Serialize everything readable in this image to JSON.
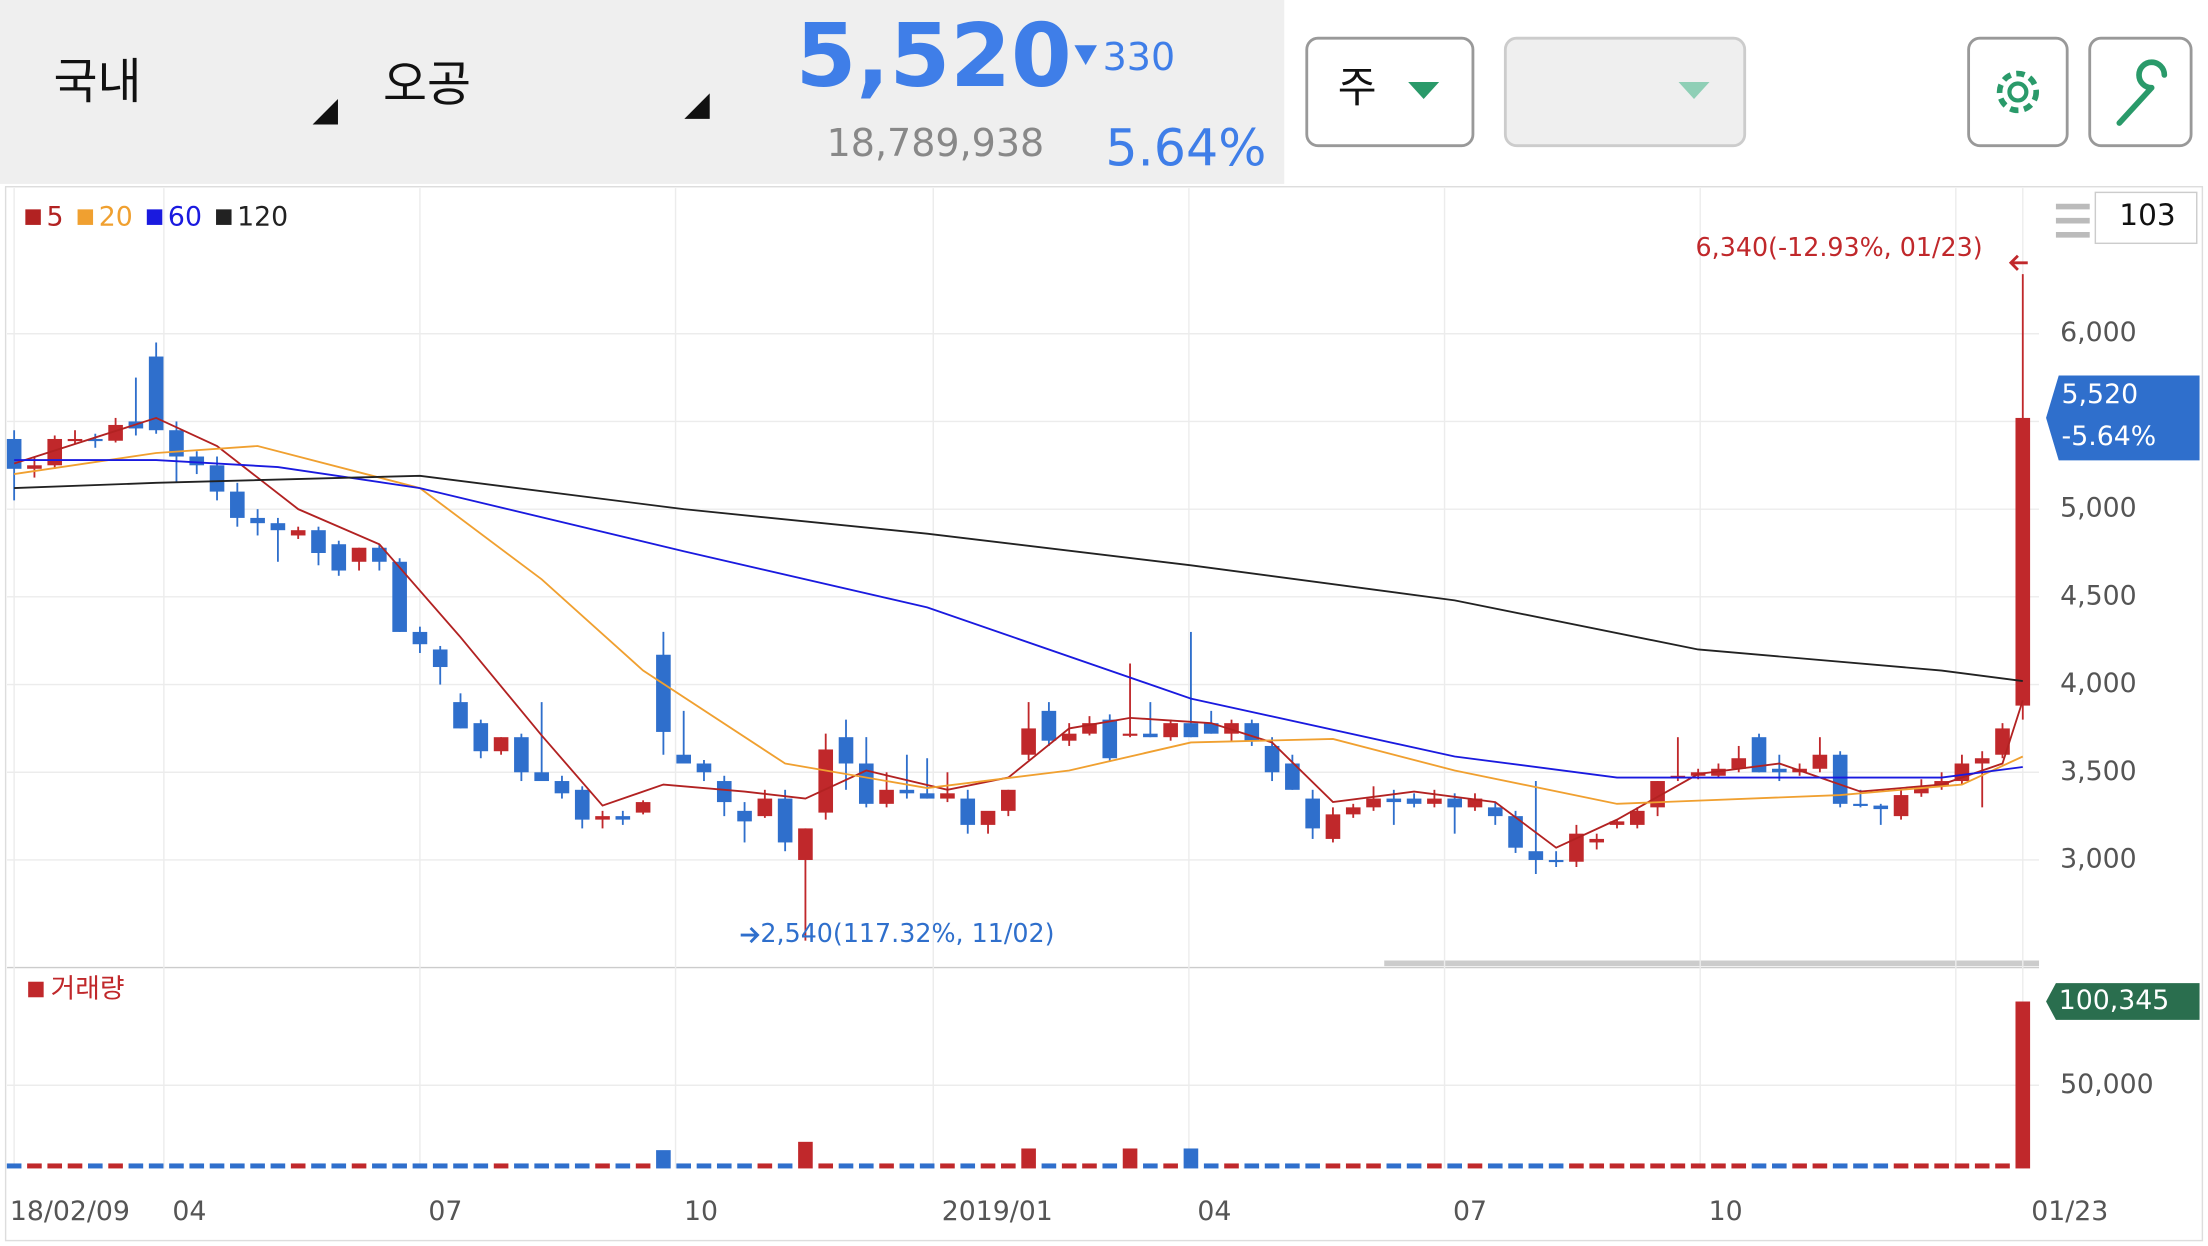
{
  "header": {
    "market": "국내",
    "name": "오공",
    "price": "5,520",
    "change": "330",
    "volume": "18,789,938",
    "rate": "5.64%",
    "period": "주"
  },
  "chart_data": {
    "type": "candlestick",
    "legend_period": "103",
    "ylim": [
      2435,
      6830
    ],
    "yticks": [
      {
        "value": 3000,
        "label": "3,000"
      },
      {
        "value": 3500,
        "label": "3,500"
      },
      {
        "value": 4000,
        "label": "4,000"
      },
      {
        "value": 4500,
        "label": "4,500"
      },
      {
        "value": 5000,
        "label": "5,000"
      },
      {
        "value": 5500,
        "label": "5,500"
      },
      {
        "value": 6000,
        "label": "6,000"
      }
    ],
    "xlim": [
      -0.35,
      99.8
    ],
    "xticks": [
      {
        "value": 0,
        "label": "18/02/09"
      },
      {
        "value": 7.38,
        "label": "04"
      },
      {
        "value": 20,
        "label": "07"
      },
      {
        "value": 32.6,
        "label": "10"
      },
      {
        "value": 45.3,
        "label": "2019/01"
      },
      {
        "value": 57.9,
        "label": "04"
      },
      {
        "value": 70.5,
        "label": "07"
      },
      {
        "value": 83.1,
        "label": "10"
      },
      {
        "value": 95.7,
        "label": ""
      },
      {
        "value": 99,
        "label": "01/23"
      }
    ],
    "up_color": "#c0282b",
    "down_color": "#2f6fcc",
    "ohlc": [
      [
        5400,
        5450,
        5050,
        5230
      ],
      [
        5230,
        5300,
        5180,
        5250
      ],
      [
        5250,
        5420,
        5230,
        5400
      ],
      [
        5400,
        5450,
        5370,
        5400
      ],
      [
        5400,
        5430,
        5350,
        5390
      ],
      [
        5390,
        5520,
        5380,
        5480
      ],
      [
        5500,
        5750,
        5420,
        5460
      ],
      [
        5870,
        5950,
        5430,
        5450
      ],
      [
        5450,
        5500,
        5150,
        5300
      ],
      [
        5300,
        5330,
        5200,
        5250
      ],
      [
        5250,
        5300,
        5050,
        5100
      ],
      [
        5100,
        5150,
        4900,
        4950
      ],
      [
        4950,
        5000,
        4850,
        4920
      ],
      [
        4920,
        4950,
        4700,
        4880
      ],
      [
        4850,
        4900,
        4830,
        4880
      ],
      [
        4880,
        4900,
        4680,
        4750
      ],
      [
        4800,
        4820,
        4620,
        4650
      ],
      [
        4700,
        4780,
        4650,
        4780
      ],
      [
        4780,
        4800,
        4650,
        4700
      ],
      [
        4700,
        4720,
        4300,
        4300
      ],
      [
        4300,
        4330,
        4180,
        4230
      ],
      [
        4200,
        4220,
        4000,
        4100
      ],
      [
        3900,
        3950,
        3750,
        3750
      ],
      [
        3780,
        3800,
        3580,
        3620
      ],
      [
        3620,
        3700,
        3600,
        3700
      ],
      [
        3700,
        3720,
        3450,
        3500
      ],
      [
        3500,
        3900,
        3450,
        3450
      ],
      [
        3450,
        3480,
        3350,
        3380
      ],
      [
        3400,
        3420,
        3180,
        3230
      ],
      [
        3230,
        3280,
        3180,
        3250
      ],
      [
        3250,
        3280,
        3200,
        3230
      ],
      [
        3270,
        3340,
        3260,
        3330
      ],
      [
        4170,
        4300,
        3600,
        3730
      ],
      [
        3600,
        3850,
        3550,
        3550
      ],
      [
        3550,
        3570,
        3450,
        3500
      ],
      [
        3450,
        3480,
        3250,
        3330
      ],
      [
        3280,
        3330,
        3100,
        3220
      ],
      [
        3250,
        3400,
        3240,
        3350
      ],
      [
        3350,
        3400,
        3050,
        3100
      ],
      [
        3000,
        3180,
        2540,
        3180
      ],
      [
        3270,
        3720,
        3230,
        3630
      ],
      [
        3700,
        3800,
        3400,
        3550
      ],
      [
        3550,
        3700,
        3300,
        3320
      ],
      [
        3320,
        3500,
        3300,
        3400
      ],
      [
        3400,
        3600,
        3350,
        3380
      ],
      [
        3380,
        3580,
        3350,
        3350
      ],
      [
        3350,
        3500,
        3330,
        3380
      ],
      [
        3350,
        3400,
        3150,
        3200
      ],
      [
        3200,
        3250,
        3150,
        3280
      ],
      [
        3280,
        3400,
        3250,
        3400
      ],
      [
        3600,
        3900,
        3570,
        3750
      ],
      [
        3850,
        3900,
        3650,
        3680
      ],
      [
        3680,
        3780,
        3650,
        3720
      ],
      [
        3720,
        3820,
        3710,
        3780
      ],
      [
        3800,
        3830,
        3560,
        3580
      ],
      [
        3720,
        4120,
        3700,
        3720
      ],
      [
        3720,
        3900,
        3700,
        3700
      ],
      [
        3700,
        3800,
        3680,
        3780
      ],
      [
        3780,
        4300,
        3700,
        3700
      ],
      [
        3780,
        3850,
        3720,
        3720
      ],
      [
        3720,
        3800,
        3680,
        3780
      ],
      [
        3780,
        3800,
        3650,
        3680
      ],
      [
        3650,
        3700,
        3450,
        3500
      ],
      [
        3550,
        3600,
        3400,
        3400
      ],
      [
        3350,
        3400,
        3120,
        3180
      ],
      [
        3120,
        3300,
        3100,
        3260
      ],
      [
        3260,
        3320,
        3240,
        3300
      ],
      [
        3300,
        3420,
        3280,
        3350
      ],
      [
        3350,
        3400,
        3200,
        3330
      ],
      [
        3350,
        3380,
        3300,
        3320
      ],
      [
        3320,
        3400,
        3300,
        3350
      ],
      [
        3350,
        3380,
        3150,
        3300
      ],
      [
        3300,
        3380,
        3280,
        3350
      ],
      [
        3300,
        3330,
        3200,
        3250
      ],
      [
        3250,
        3280,
        3040,
        3070
      ],
      [
        3050,
        3450,
        2920,
        3000
      ],
      [
        3000,
        3050,
        2960,
        2990
      ],
      [
        2990,
        3200,
        2960,
        3150
      ],
      [
        3100,
        3150,
        3060,
        3120
      ],
      [
        3200,
        3230,
        3180,
        3220
      ],
      [
        3200,
        3300,
        3180,
        3280
      ],
      [
        3300,
        3450,
        3250,
        3450
      ],
      [
        3480,
        3700,
        3450,
        3480
      ],
      [
        3480,
        3520,
        3460,
        3500
      ],
      [
        3480,
        3550,
        3470,
        3520
      ],
      [
        3520,
        3650,
        3500,
        3580
      ],
      [
        3700,
        3720,
        3500,
        3500
      ],
      [
        3520,
        3600,
        3450,
        3500
      ],
      [
        3500,
        3550,
        3480,
        3520
      ],
      [
        3520,
        3700,
        3500,
        3600
      ],
      [
        3600,
        3620,
        3300,
        3320
      ],
      [
        3320,
        3400,
        3300,
        3310
      ],
      [
        3310,
        3320,
        3200,
        3290
      ],
      [
        3250,
        3400,
        3230,
        3370
      ],
      [
        3380,
        3460,
        3360,
        3420
      ],
      [
        3420,
        3500,
        3400,
        3450
      ],
      [
        3450,
        3600,
        3430,
        3550
      ],
      [
        3550,
        3620,
        3300,
        3580
      ],
      [
        3600,
        3780,
        3580,
        3750
      ],
      [
        3880,
        6340,
        3800,
        5520
      ]
    ],
    "ma": [
      {
        "name": "5",
        "color": "#b22222",
        "x": [
          0,
          7,
          10,
          14,
          18,
          22,
          26,
          29,
          32,
          36,
          39,
          42,
          46,
          49,
          52,
          55,
          59,
          62,
          65,
          69,
          73,
          76,
          79,
          83,
          87,
          91,
          95,
          98,
          99
        ],
        "values": [
          5260,
          5520,
          5360,
          5000,
          4800,
          4270,
          3710,
          3310,
          3430,
          3390,
          3350,
          3510,
          3400,
          3470,
          3750,
          3810,
          3780,
          3670,
          3330,
          3390,
          3330,
          3070,
          3230,
          3490,
          3550,
          3390,
          3430,
          3550,
          3910
        ]
      },
      {
        "name": "20",
        "color": "#f0a030",
        "x": [
          0,
          7,
          12,
          20,
          26,
          31,
          38,
          45,
          52,
          58,
          65,
          71,
          79,
          90,
          96,
          99
        ],
        "values": [
          5200,
          5320,
          5360,
          5120,
          4600,
          4080,
          3550,
          3410,
          3510,
          3670,
          3690,
          3510,
          3320,
          3370,
          3430,
          3590
        ]
      },
      {
        "name": "60",
        "color": "#1a1adf",
        "x": [
          0,
          7,
          13,
          20,
          33,
          45,
          58,
          71,
          79,
          95,
          99
        ],
        "values": [
          5280,
          5280,
          5240,
          5120,
          4760,
          4440,
          3920,
          3590,
          3470,
          3470,
          3530
        ]
      },
      {
        "name": "120",
        "color": "#222222",
        "x": [
          0,
          7,
          20,
          33,
          45,
          58,
          71,
          83,
          95,
          99
        ],
        "values": [
          5120,
          5150,
          5190,
          5000,
          4860,
          4680,
          4480,
          4200,
          4080,
          4020
        ]
      }
    ],
    "high_label": "6,340(-12.93%, 01/23)",
    "low_label": "2,540(117.32%, 11/02)",
    "last_price_label": "5,520",
    "last_rate_label": "-5.64%",
    "volume_name": "거래량",
    "vlim": [
      0,
      117350
    ],
    "vticks": [
      {
        "value": 50000,
        "label": "50,000"
      }
    ],
    "volume_last_label": "100,345",
    "volumes": [
      3000,
      3000,
      3000,
      3000,
      3000,
      3000,
      3000,
      3000,
      3000,
      3000,
      3000,
      3000,
      3000,
      3000,
      3000,
      3000,
      3000,
      3000,
      3000,
      3000,
      3000,
      3000,
      3000,
      3000,
      3000,
      3000,
      3000,
      3000,
      3000,
      3000,
      3000,
      3000,
      11000,
      3000,
      3000,
      3000,
      3000,
      3000,
      3000,
      16000,
      3000,
      3000,
      3000,
      3000,
      3000,
      3000,
      3000,
      3000,
      3000,
      3000,
      12000,
      3000,
      3000,
      3000,
      3000,
      12000,
      3000,
      3000,
      12000,
      3000,
      3000,
      3000,
      3000,
      3000,
      3000,
      3000,
      3000,
      3000,
      3000,
      3000,
      3000,
      3000,
      3000,
      3000,
      3000,
      3000,
      3000,
      3000,
      3000,
      3000,
      3000,
      3000,
      3000,
      3000,
      3000,
      3000,
      3000,
      3000,
      3000,
      3000,
      3000,
      3000,
      3000,
      3000,
      3000,
      3000,
      3000,
      3000,
      3000,
      100345
    ]
  }
}
